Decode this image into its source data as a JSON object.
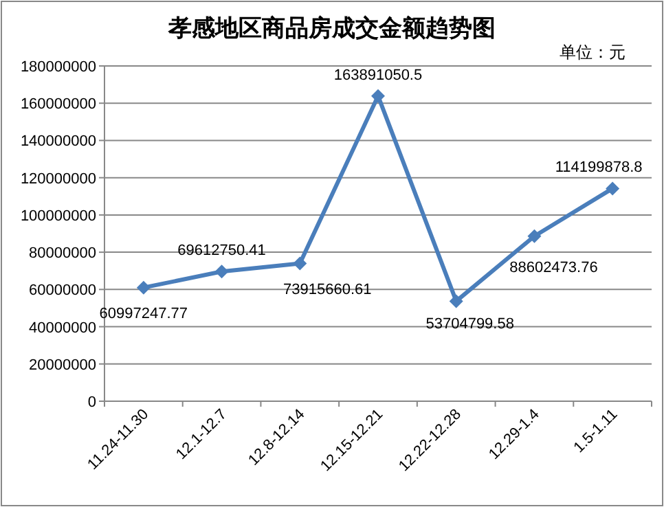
{
  "chart_data": {
    "type": "line",
    "title": "孝感地区商品房成交金额趋势图",
    "annotations": [
      "单位：元"
    ],
    "categories": [
      "11.24-11.30",
      "12.1-12.7",
      "12.8-12.14",
      "12.15-12.21",
      "12.22-12.28",
      "12.29-1.4",
      "1.5-1.11"
    ],
    "series": [
      {
        "color": "#4a7ebb",
        "values": [
          60997247.77,
          69612750.41,
          73915660.61,
          163891050.5,
          53704799.58,
          88602473.76,
          114199878.8
        ]
      }
    ],
    "ylim": [
      0,
      180000000
    ],
    "yticks": [
      0,
      20000000,
      40000000,
      60000000,
      80000000,
      100000000,
      120000000,
      140000000,
      160000000,
      180000000
    ],
    "grid": "y",
    "marker": "diamond",
    "line_style": "solid",
    "data_labels": true
  }
}
